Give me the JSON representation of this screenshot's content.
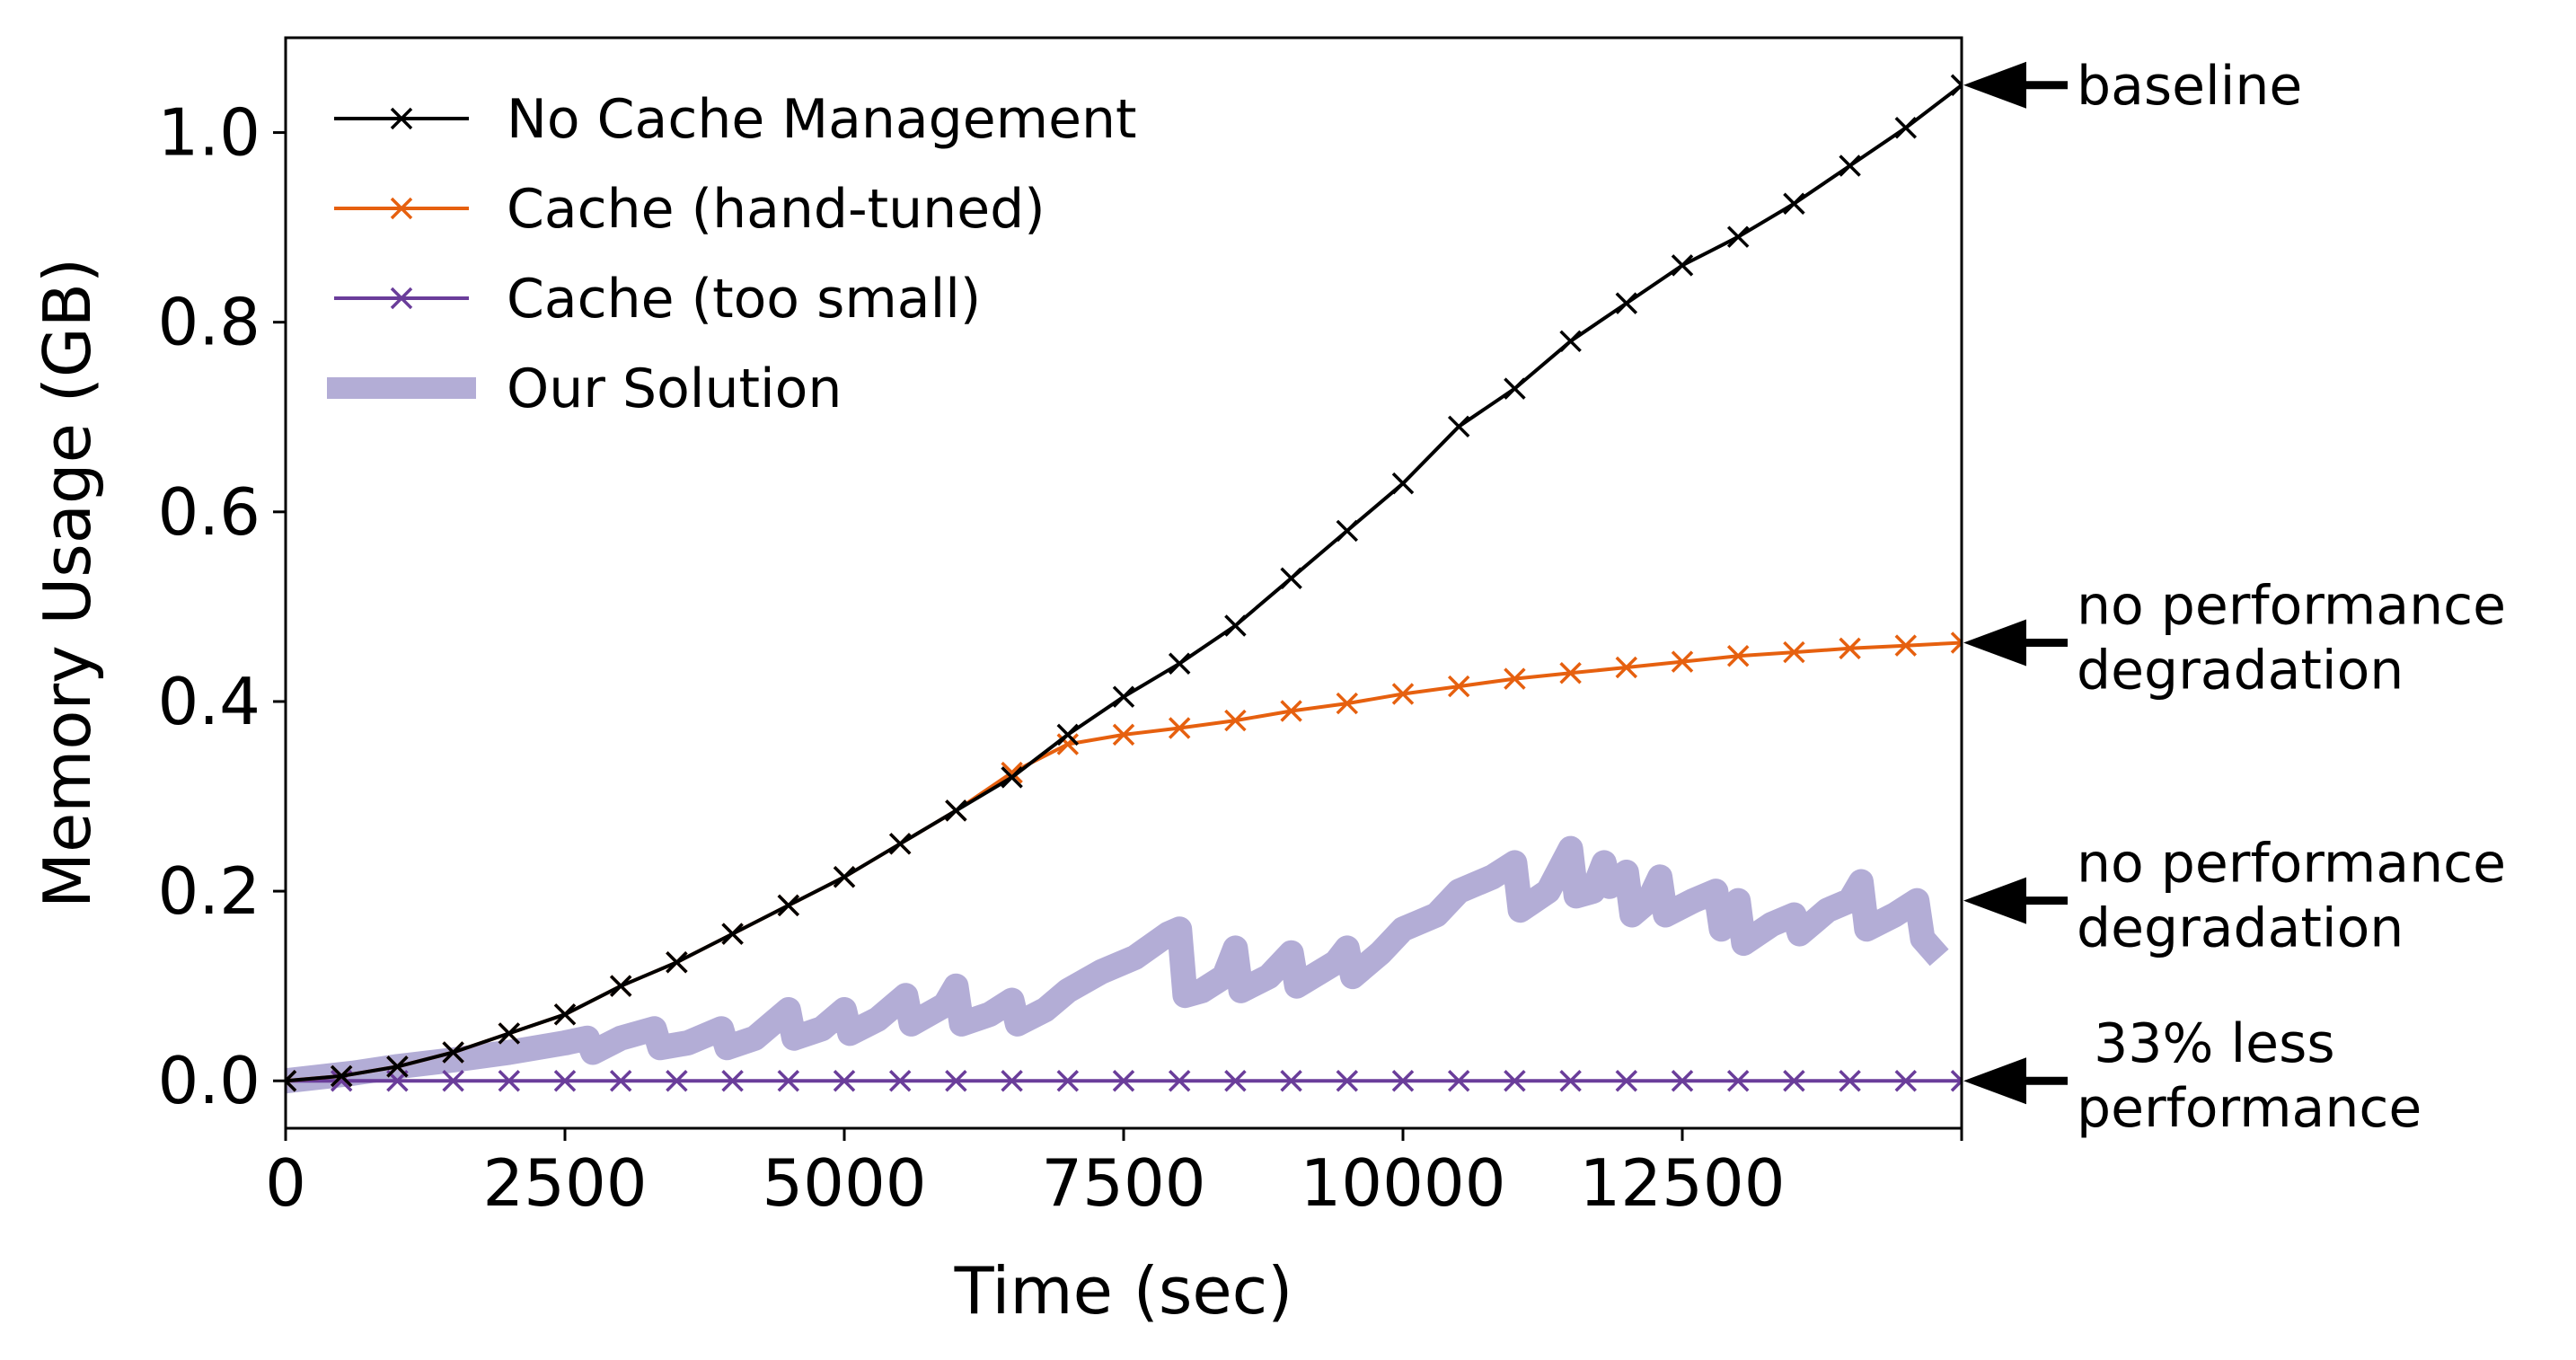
{
  "chart_data": {
    "type": "line",
    "title": "",
    "xlabel": "Time (sec)",
    "ylabel": "Memory Usage (GB)",
    "xlim": [
      0,
      15000
    ],
    "ylim": [
      -0.05,
      1.1
    ],
    "xticks": [
      0,
      2500,
      5000,
      7500,
      10000,
      12500
    ],
    "xtick_labels": [
      "0",
      "2500",
      "5000",
      "7500",
      "10000",
      "12500"
    ],
    "yticks": [
      0.0,
      0.2,
      0.4,
      0.6,
      0.8,
      1.0
    ],
    "ytick_labels": [
      "0.0",
      "0.2",
      "0.4",
      "0.6",
      "0.8",
      "1.0"
    ],
    "grid": false,
    "legend_position": "upper-left",
    "series": [
      {
        "name": "No Cache Management",
        "color": "#000000",
        "marker": "x",
        "x": [
          0,
          500,
          1000,
          1500,
          2000,
          2500,
          3000,
          3500,
          4000,
          4500,
          5000,
          5500,
          6000,
          6500,
          7000,
          7500,
          8000,
          8500,
          9000,
          9500,
          10000,
          10500,
          11000,
          11500,
          12000,
          12500,
          13000,
          13500,
          14000,
          14500,
          15000
        ],
        "y": [
          0.0,
          0.005,
          0.015,
          0.03,
          0.05,
          0.07,
          0.1,
          0.125,
          0.155,
          0.185,
          0.215,
          0.25,
          0.285,
          0.32,
          0.365,
          0.405,
          0.44,
          0.48,
          0.53,
          0.58,
          0.63,
          0.69,
          0.73,
          0.78,
          0.82,
          0.86,
          0.89,
          0.925,
          0.965,
          1.005,
          1.05
        ]
      },
      {
        "name": "Cache (hand-tuned)",
        "color": "#e6600f",
        "marker": "x",
        "x": [
          0,
          500,
          1000,
          1500,
          2000,
          2500,
          3000,
          3500,
          4000,
          4500,
          5000,
          5500,
          6000,
          6500,
          7000,
          7500,
          8000,
          8500,
          9000,
          9500,
          10000,
          10500,
          11000,
          11500,
          12000,
          12500,
          13000,
          13500,
          14000,
          14500,
          15000
        ],
        "y": [
          0.0,
          0.005,
          0.015,
          0.03,
          0.05,
          0.07,
          0.1,
          0.125,
          0.155,
          0.185,
          0.215,
          0.25,
          0.285,
          0.325,
          0.355,
          0.365,
          0.372,
          0.38,
          0.39,
          0.398,
          0.408,
          0.416,
          0.424,
          0.43,
          0.436,
          0.442,
          0.448,
          0.452,
          0.456,
          0.459,
          0.462
        ]
      },
      {
        "name": "Cache (too small)",
        "color": "#6a3d9a",
        "marker": "x",
        "x": [
          0,
          500,
          1000,
          1500,
          2000,
          2500,
          3000,
          3500,
          4000,
          4500,
          5000,
          5500,
          6000,
          6500,
          7000,
          7500,
          8000,
          8500,
          9000,
          9500,
          10000,
          10500,
          11000,
          11500,
          12000,
          12500,
          13000,
          13500,
          14000,
          14500,
          15000
        ],
        "y": [
          0,
          0,
          0,
          0,
          0,
          0,
          0,
          0,
          0,
          0,
          0,
          0,
          0,
          0,
          0,
          0,
          0,
          0,
          0,
          0,
          0,
          0,
          0,
          0,
          0,
          0,
          0,
          0,
          0,
          0,
          0
        ]
      },
      {
        "name": "Our Solution",
        "color": "#b3add6",
        "marker": "",
        "x": [
          0,
          600,
          1000,
          1500,
          2000,
          2500,
          2700,
          2750,
          3000,
          3300,
          3350,
          3600,
          3900,
          3950,
          4200,
          4500,
          4550,
          4800,
          5000,
          5050,
          5300,
          5550,
          5600,
          5900,
          6000,
          6050,
          6300,
          6500,
          6550,
          6800,
          7000,
          7300,
          7600,
          7900,
          8000,
          8050,
          8200,
          8400,
          8500,
          8550,
          8800,
          9000,
          9050,
          9400,
          9500,
          9550,
          9800,
          10000,
          10300,
          10500,
          10800,
          11000,
          11050,
          11300,
          11500,
          11550,
          11700,
          11800,
          11850,
          12000,
          12050,
          12200,
          12300,
          12350,
          12600,
          12800,
          12850,
          13000,
          13050,
          13300,
          13500,
          13550,
          13700,
          13800,
          14000,
          14100,
          14150,
          14400,
          14600,
          14650,
          14800
        ],
        "y": [
          0.0,
          0.008,
          0.015,
          0.022,
          0.03,
          0.04,
          0.045,
          0.03,
          0.045,
          0.055,
          0.035,
          0.04,
          0.055,
          0.035,
          0.045,
          0.075,
          0.045,
          0.055,
          0.075,
          0.05,
          0.065,
          0.09,
          0.06,
          0.08,
          0.1,
          0.06,
          0.07,
          0.085,
          0.06,
          0.075,
          0.095,
          0.115,
          0.13,
          0.155,
          0.16,
          0.09,
          0.095,
          0.11,
          0.14,
          0.095,
          0.11,
          0.135,
          0.1,
          0.125,
          0.14,
          0.11,
          0.135,
          0.16,
          0.175,
          0.2,
          0.215,
          0.23,
          0.18,
          0.2,
          0.245,
          0.195,
          0.2,
          0.23,
          0.205,
          0.22,
          0.175,
          0.19,
          0.215,
          0.175,
          0.19,
          0.2,
          0.16,
          0.19,
          0.145,
          0.165,
          0.175,
          0.155,
          0.17,
          0.18,
          0.19,
          0.21,
          0.16,
          0.175,
          0.19,
          0.15,
          0.13
        ]
      }
    ],
    "annotations": [
      {
        "lines": [
          "baseline"
        ],
        "y": 1.05
      },
      {
        "lines": [
          "no performance",
          "degradation"
        ],
        "y": 0.462
      },
      {
        "lines": [
          "no performance",
          "degradation"
        ],
        "y": 0.19
      },
      {
        "lines": [
          " 33% less",
          "performance"
        ],
        "y": 0.0
      }
    ]
  }
}
